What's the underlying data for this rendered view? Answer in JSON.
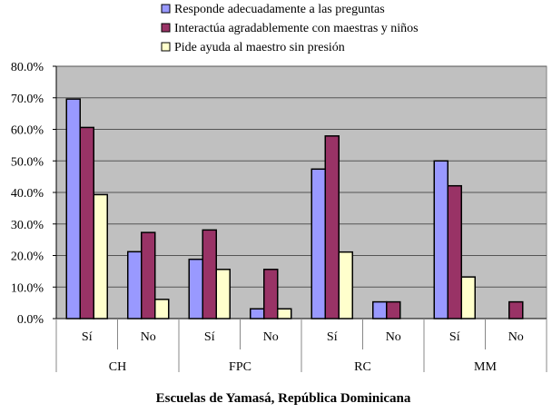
{
  "chart_data": {
    "type": "bar",
    "title": "Escuelas de Yamasá, República Dominicana",
    "ylim": [
      0,
      80
    ],
    "yticks": [
      "0.0%",
      "10.0%",
      "20.0%",
      "30.0%",
      "40.0%",
      "50.0%",
      "60.0%",
      "70.0%",
      "80.0%"
    ],
    "groups": [
      "CH",
      "FPC",
      "RC",
      "MM"
    ],
    "categories": [
      "Sí",
      "No",
      "Sí",
      "No",
      "Sí",
      "No",
      "Sí",
      "No"
    ],
    "legend_position": "top",
    "series": [
      {
        "name": "Responde adecuadamente a las preguntas",
        "color": "#9999FF",
        "values": [
          69.6,
          21.2,
          18.8,
          3.1,
          47.4,
          5.3,
          50.0,
          0
        ]
      },
      {
        "name": "Interactúa agradablemente con maestras y niños",
        "color": "#993366",
        "values": [
          60.6,
          27.3,
          28.1,
          15.6,
          57.9,
          5.3,
          42.1,
          5.3
        ]
      },
      {
        "name": "Pide ayuda al maestro sin presión",
        "color": "#FFFFCC",
        "values": [
          39.3,
          6.1,
          15.6,
          3.1,
          21.1,
          0,
          13.2,
          0
        ]
      }
    ]
  }
}
